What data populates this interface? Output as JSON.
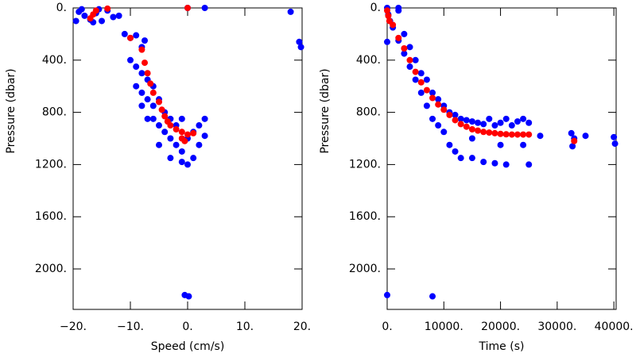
{
  "chart_data": [
    {
      "type": "scatter",
      "x_label": "Speed (cm/s)",
      "y_label": "Pressure (dbar)",
      "xlim": [
        -20,
        20
      ],
      "ylim": [
        0,
        2310
      ],
      "y_inverted": true,
      "xticks": [
        {
          "value": -20,
          "label": "−20."
        },
        {
          "value": -10,
          "label": "−10."
        },
        {
          "value": 0,
          "label": "0."
        },
        {
          "value": 10,
          "label": "10."
        },
        {
          "value": 20,
          "label": "20."
        }
      ],
      "yticks": [
        {
          "value": 0,
          "label": "0."
        },
        {
          "value": 400,
          "label": "400."
        },
        {
          "value": 800,
          "label": "800."
        },
        {
          "value": 1200,
          "label": "1200."
        },
        {
          "value": 1600,
          "label": "1600."
        },
        {
          "value": 2000,
          "label": "2000."
        }
      ],
      "series": [
        {
          "color": "#0000ff",
          "x": [
            -19,
            -18,
            -17,
            -16,
            -15,
            -14,
            -13,
            -19.5,
            -16.5,
            -12,
            -15.5,
            -18.5,
            -11,
            -10,
            -9,
            -8,
            -7.5,
            -10,
            -9,
            -8,
            -9,
            -8,
            -7,
            -6,
            -7,
            -6,
            -5,
            -6,
            -5,
            -4,
            -3,
            -4,
            -3,
            -2,
            -1,
            -2,
            -1,
            0,
            1,
            2,
            3,
            3,
            -5,
            -3,
            0,
            -1,
            1,
            2,
            -7,
            -8,
            0,
            3,
            18,
            19.5,
            19.8,
            -0.5,
            0.2
          ],
          "values": [
            30,
            60,
            90,
            40,
            100,
            20,
            70,
            100,
            110,
            60,
            10,
            10,
            200,
            230,
            210,
            300,
            250,
            400,
            450,
            500,
            600,
            650,
            550,
            600,
            700,
            750,
            700,
            850,
            900,
            800,
            850,
            950,
            1000,
            900,
            850,
            1050,
            1100,
            1000,
            950,
            900,
            850,
            980,
            1050,
            1150,
            1200,
            1180,
            1150,
            1050,
            850,
            750,
            0,
            0,
            30,
            260,
            300,
            2200,
            2210
          ]
        },
        {
          "color": "#ff0000",
          "x": [
            -17,
            -16.5,
            -16,
            -14,
            -10,
            -8,
            -7.5,
            -7,
            -6.5,
            -6,
            -5,
            -4.5,
            -4,
            -3.5,
            -3,
            -2,
            -1,
            0,
            1,
            -1,
            -0.5,
            0
          ],
          "values": [
            80,
            50,
            20,
            5,
            230,
            320,
            420,
            500,
            580,
            650,
            720,
            780,
            830,
            870,
            900,
            930,
            950,
            970,
            960,
            1000,
            1020,
            0
          ]
        }
      ]
    },
    {
      "type": "scatter",
      "x_label": "Time (s)",
      "y_label": "Pressure (dbar)",
      "xlim": [
        0,
        40400
      ],
      "ylim": [
        0,
        2310
      ],
      "y_inverted": true,
      "xticks": [
        {
          "value": 0,
          "label": "0."
        },
        {
          "value": 10000,
          "label": "10000."
        },
        {
          "value": 20000,
          "label": "20000."
        },
        {
          "value": 30000,
          "label": "30000."
        },
        {
          "value": 40000,
          "label": "40000."
        }
      ],
      "yticks": [
        {
          "value": 0,
          "label": "0."
        },
        {
          "value": 400,
          "label": "400."
        },
        {
          "value": 800,
          "label": "800."
        },
        {
          "value": 1200,
          "label": "1200."
        },
        {
          "value": 1600,
          "label": "1600."
        },
        {
          "value": 2000,
          "label": "2000."
        }
      ],
      "series": [
        {
          "color": "#0000ff",
          "x": [
            0,
            200,
            500,
            0,
            1000,
            2000,
            2000,
            3000,
            3000,
            4000,
            4000,
            5000,
            5000,
            6000,
            6000,
            7000,
            7000,
            8000,
            8000,
            9000,
            9000,
            10000,
            10000,
            11000,
            11000,
            12000,
            12000,
            13000,
            13000,
            14000,
            15000,
            15000,
            16000,
            17000,
            17000,
            18000,
            19000,
            19000,
            20000,
            21000,
            21000,
            22000,
            23000,
            24000,
            25000,
            25000,
            15000,
            20000,
            24000,
            27000,
            32500,
            33000,
            32700,
            35000,
            40000,
            40200,
            0,
            8000,
            2000
          ],
          "values": [
            0,
            50,
            100,
            260,
            150,
            20,
            250,
            200,
            350,
            300,
            450,
            400,
            550,
            500,
            650,
            550,
            750,
            650,
            850,
            700,
            900,
            750,
            950,
            800,
            1050,
            820,
            1100,
            850,
            1150,
            860,
            870,
            1150,
            880,
            890,
            1180,
            850,
            900,
            1190,
            880,
            850,
            1200,
            900,
            870,
            850,
            880,
            1200,
            1000,
            1050,
            1050,
            980,
            960,
            1000,
            1060,
            980,
            990,
            1040,
            2200,
            2210,
            0
          ]
        },
        {
          "color": "#ff0000",
          "x": [
            0,
            200,
            400,
            1000,
            2000,
            3000,
            4000,
            5000,
            6000,
            7000,
            8000,
            9000,
            10000,
            11000,
            12000,
            13000,
            14000,
            15000,
            16000,
            17000,
            18000,
            19000,
            20000,
            21000,
            22000,
            23000,
            24000,
            25000,
            33000
          ],
          "values": [
            20,
            60,
            100,
            130,
            230,
            310,
            400,
            490,
            570,
            630,
            690,
            740,
            780,
            820,
            860,
            890,
            910,
            930,
            940,
            950,
            955,
            960,
            965,
            968,
            970,
            970,
            970,
            970,
            1020
          ]
        }
      ]
    }
  ]
}
